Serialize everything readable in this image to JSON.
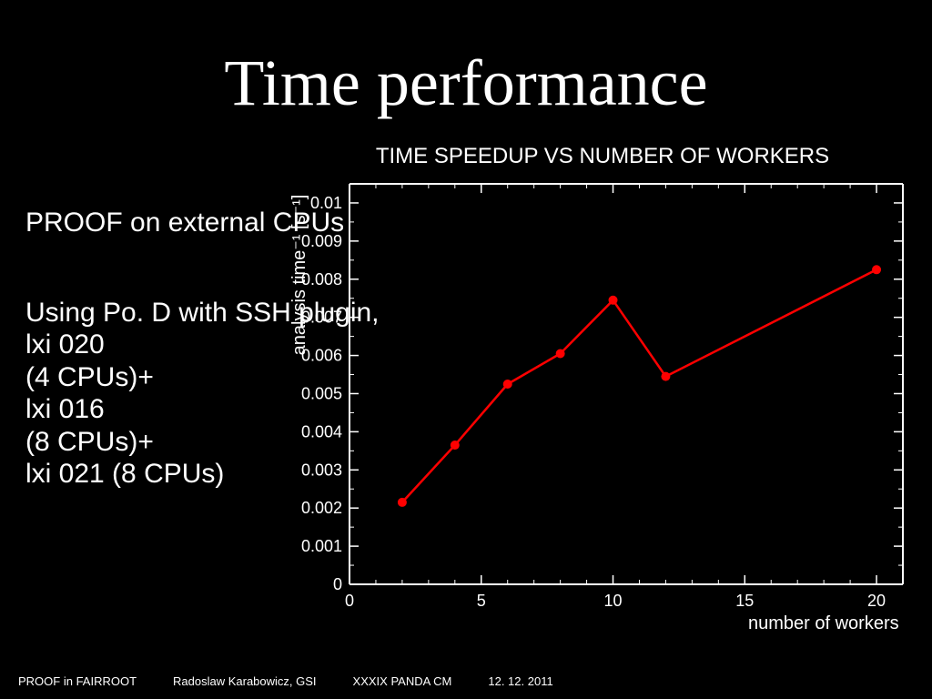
{
  "title": "Time performance",
  "sidebar": {
    "heading": "PROOF on external CPUs",
    "body": "Using Po. D with SSH plugin,\nlxi 020\n(4 CPUs)+\nlxi 016\n(8 CPUs)+\nlxi 021 (8 CPUs)"
  },
  "footer": {
    "item1": "PROOF in FAIRROOT",
    "item2": "Radoslaw Karabowicz, GSI",
    "item3": "XXXIX PANDA CM",
    "item4": "12. 12. 2011"
  },
  "chart": {
    "type": "line",
    "title": "TIME SPEEDUP VS NUMBER OF WORKERS",
    "xlabel": "number of workers",
    "ylabel": "analysis time⁻¹ [s⁻¹]",
    "background_color": "#000000",
    "axis_color": "#ffffff",
    "axis_width": 2,
    "tick_length_major": 10,
    "tick_length_minor": 5,
    "text_color": "#ffffff",
    "tick_fontsize": 18,
    "title_fontsize": 24,
    "label_fontsize": 20,
    "line_color": "#ff0000",
    "line_width": 2.5,
    "marker_color": "#ff0000",
    "marker_radius": 5,
    "xlim": [
      0,
      21
    ],
    "ylim": [
      0,
      0.0105
    ],
    "xticks_major": [
      0,
      5,
      10,
      15,
      20
    ],
    "xticks_minor": [
      1,
      2,
      3,
      4,
      6,
      7,
      8,
      9,
      11,
      12,
      13,
      14,
      16,
      17,
      18,
      19,
      21
    ],
    "yticks_major": [
      0,
      0.001,
      0.002,
      0.003,
      0.004,
      0.005,
      0.006,
      0.007,
      0.008,
      0.009,
      0.01
    ],
    "ytick_labels": [
      "0",
      "0.001",
      "0.002",
      "0.003",
      "0.004",
      "0.005",
      "0.006",
      "0.007",
      "0.008",
      "0.009",
      "0.01"
    ],
    "x": [
      2,
      4,
      6,
      8,
      10,
      12,
      20
    ],
    "y": [
      0.00215,
      0.00365,
      0.00525,
      0.00605,
      0.00745,
      0.00545,
      0.00825
    ]
  }
}
